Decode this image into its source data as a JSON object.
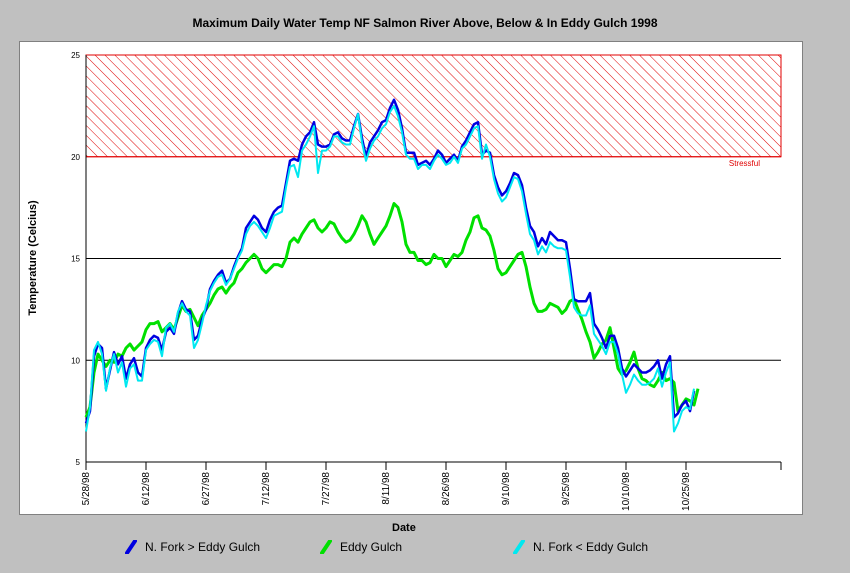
{
  "chart_data": {
    "type": "line",
    "title": "Maximum Daily Water Temp NF Salmon River Above, Below & In Eddy Gulch 1998",
    "xlabel": "Date",
    "ylabel": "Temperature (Celcius)",
    "ylim": [
      5,
      25
    ],
    "yticks": [
      5,
      10,
      15,
      20,
      25
    ],
    "x_ticks": [
      "5/28/98",
      "6/12/98",
      "6/27/98",
      "7/12/98",
      "7/27/98",
      "8/11/98",
      "8/26/98",
      "9/10/98",
      "9/25/98",
      "10/10/98",
      "10/25/98"
    ],
    "threshold": {
      "from": 20,
      "to": 25,
      "label": "Stressful",
      "color": "#e00000"
    },
    "grid": "horizontal",
    "legend": "bottom",
    "series": [
      {
        "name": "N. Fork > Eddy Gulch",
        "color": "#0000e0",
        "values": [
          6.9,
          7.5,
          10.2,
          10.8,
          10.6,
          8.6,
          9.5,
          10.4,
          9.8,
          10.2,
          9.1,
          9.8,
          10.1,
          9.4,
          9.2,
          10.6,
          11.0,
          11.2,
          11.1,
          10.5,
          11.4,
          11.6,
          11.3,
          12.3,
          12.9,
          12.5,
          12.4,
          11.0,
          11.2,
          12.0,
          12.5,
          13.5,
          13.9,
          14.2,
          14.4,
          13.8,
          14.0,
          14.6,
          15.1,
          15.5,
          16.5,
          16.8,
          17.1,
          16.9,
          16.5,
          16.3,
          16.9,
          17.3,
          17.5,
          17.6,
          18.7,
          19.8,
          19.9,
          19.8,
          20.6,
          21.0,
          21.2,
          21.7,
          20.6,
          20.5,
          20.5,
          20.6,
          21.1,
          21.2,
          20.9,
          20.8,
          20.8,
          21.5,
          22.1,
          20.9,
          20.0,
          20.7,
          21.0,
          21.3,
          21.7,
          21.8,
          22.4,
          22.8,
          22.3,
          21.4,
          20.2,
          20.2,
          20.2,
          19.6,
          19.7,
          19.8,
          19.6,
          19.9,
          20.3,
          20.1,
          19.7,
          19.9,
          20.1,
          19.8,
          20.5,
          20.8,
          21.2,
          21.6,
          21.7,
          20.1,
          20.3,
          20.2,
          19.1,
          18.5,
          18.1,
          18.3,
          18.7,
          19.2,
          19.1,
          18.6,
          17.5,
          16.6,
          16.3,
          15.6,
          16.0,
          15.7,
          16.3,
          16.1,
          15.9,
          15.9,
          15.8,
          14.5,
          13.0,
          12.9,
          12.9,
          12.9,
          13.3,
          11.8,
          11.5,
          11.1,
          10.6,
          11.2,
          11.2,
          10.6,
          9.6,
          9.2,
          9.5,
          9.8,
          9.6,
          9.4,
          9.4,
          9.5,
          9.7,
          10.0,
          9.1,
          9.8,
          10.2,
          7.2,
          7.4,
          7.8,
          8.0,
          7.5,
          8.5
        ]
      },
      {
        "name": "Eddy Gulch",
        "color": "#00e000",
        "values": [
          7.2,
          7.7,
          9.4,
          10.3,
          10.0,
          9.7,
          10.0,
          9.9,
          10.3,
          10.2,
          10.6,
          10.8,
          10.5,
          10.7,
          10.9,
          11.5,
          11.8,
          11.8,
          11.9,
          11.4,
          11.6,
          11.8,
          11.5,
          12.1,
          12.7,
          12.4,
          12.5,
          12.1,
          11.7,
          12.2,
          12.5,
          12.8,
          13.2,
          13.5,
          13.6,
          13.3,
          13.6,
          13.8,
          14.3,
          14.5,
          14.8,
          15.0,
          15.2,
          15.0,
          14.5,
          14.3,
          14.5,
          14.7,
          14.7,
          14.6,
          15.0,
          15.8,
          16.0,
          15.8,
          16.2,
          16.5,
          16.8,
          16.9,
          16.5,
          16.3,
          16.5,
          16.8,
          16.7,
          16.3,
          16.0,
          15.8,
          15.9,
          16.2,
          16.6,
          17.1,
          16.8,
          16.2,
          15.7,
          16.0,
          16.3,
          16.6,
          17.1,
          17.7,
          17.5,
          16.8,
          15.7,
          15.3,
          15.3,
          14.9,
          14.9,
          14.7,
          14.8,
          15.2,
          15.0,
          15.0,
          14.6,
          14.9,
          15.2,
          15.1,
          15.3,
          15.9,
          16.3,
          17.0,
          17.1,
          16.5,
          16.4,
          16.1,
          15.4,
          14.5,
          14.2,
          14.3,
          14.6,
          14.9,
          15.2,
          15.3,
          14.6,
          13.6,
          12.8,
          12.4,
          12.4,
          12.5,
          12.8,
          12.7,
          12.6,
          12.3,
          12.5,
          12.9,
          13.0,
          12.5,
          12.0,
          11.4,
          10.9,
          10.1,
          10.4,
          10.8,
          11.0,
          11.6,
          10.6,
          9.6,
          9.3,
          9.5,
          9.9,
          10.4,
          9.6,
          9.1,
          9.0,
          8.8,
          8.7,
          9.0,
          9.4,
          9.0,
          9.1,
          8.9,
          7.5,
          7.8,
          8.1,
          8.0,
          7.8,
          8.6
        ]
      },
      {
        "name": "N. Fork < Eddy Gulch",
        "color": "#00e8f0",
        "values": [
          6.5,
          7.7,
          10.5,
          10.9,
          10.3,
          8.5,
          9.6,
          10.3,
          9.4,
          9.9,
          8.7,
          9.6,
          9.8,
          9.0,
          9.0,
          10.5,
          10.8,
          11.0,
          10.9,
          10.2,
          11.6,
          11.8,
          11.4,
          12.4,
          12.8,
          12.4,
          12.2,
          10.6,
          11.0,
          11.8,
          12.7,
          13.4,
          13.8,
          14.1,
          14.2,
          13.7,
          14.0,
          14.5,
          15.0,
          15.4,
          16.2,
          16.6,
          16.8,
          16.6,
          16.3,
          16.0,
          16.5,
          17.1,
          17.2,
          17.3,
          18.5,
          19.5,
          19.6,
          19.0,
          20.3,
          20.6,
          21.0,
          21.5,
          19.2,
          20.3,
          20.3,
          20.5,
          21.0,
          21.0,
          20.7,
          20.6,
          20.6,
          21.4,
          22.1,
          20.7,
          19.8,
          20.4,
          20.8,
          21.0,
          21.4,
          21.6,
          22.2,
          22.5,
          22.0,
          21.2,
          20.1,
          19.9,
          19.9,
          19.4,
          19.6,
          19.6,
          19.4,
          19.8,
          20.1,
          19.9,
          19.6,
          19.7,
          20.0,
          19.7,
          20.4,
          20.6,
          21.0,
          21.4,
          21.5,
          19.9,
          20.6,
          20.0,
          18.9,
          18.2,
          17.8,
          18.0,
          18.5,
          19.0,
          18.9,
          18.3,
          17.2,
          16.2,
          15.9,
          15.2,
          15.6,
          15.3,
          15.8,
          15.6,
          15.5,
          15.5,
          15.4,
          14.1,
          12.6,
          12.3,
          12.2,
          12.2,
          12.7,
          11.3,
          11.0,
          10.7,
          10.3,
          10.9,
          10.9,
          10.3,
          9.3,
          8.4,
          8.8,
          9.3,
          9.0,
          8.8,
          8.8,
          8.9,
          9.1,
          9.6,
          8.7,
          9.4,
          9.9,
          6.5,
          6.9,
          7.5,
          7.7,
          7.6,
          8.6
        ]
      }
    ]
  }
}
